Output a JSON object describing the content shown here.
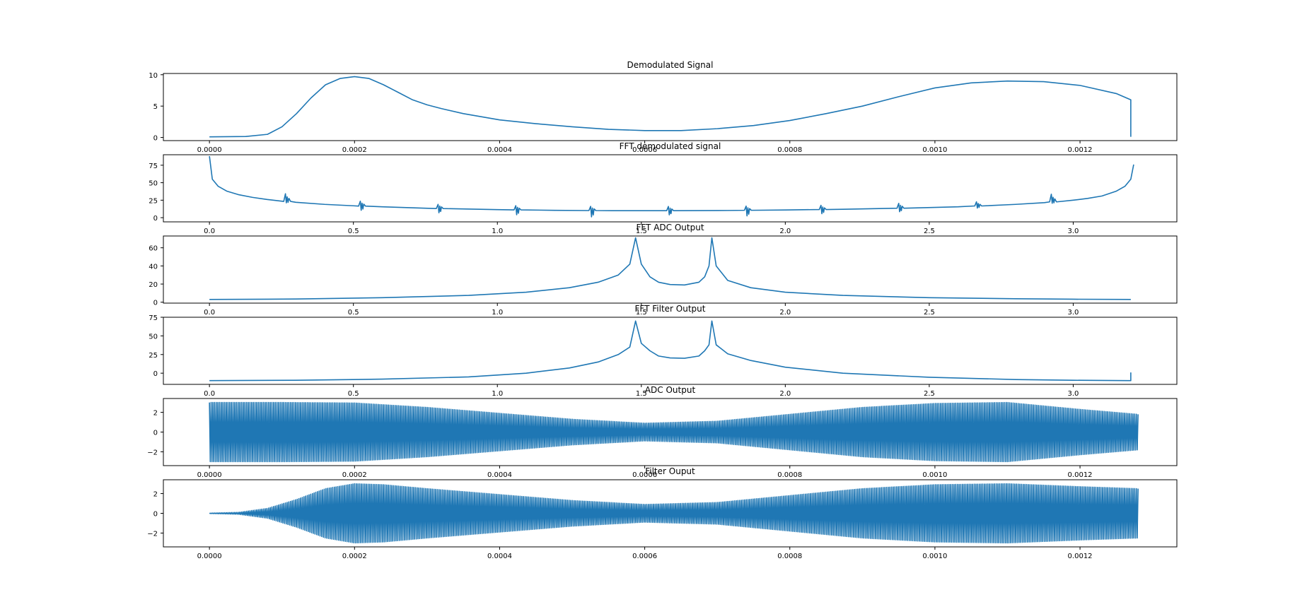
{
  "figure": {
    "background": "#ffffff",
    "line_color": "#1f77b4"
  },
  "chart_data": [
    {
      "type": "line",
      "title": "Demodulated Signal",
      "xlim": [
        -6.35e-05,
        0.0013335
      ],
      "ylim": [
        -0.5,
        10.2
      ],
      "xticks": [
        0,
        0.0002,
        0.0004,
        0.0006,
        0.0008,
        0.001,
        0.0012
      ],
      "xtick_labels": [
        "0.0000",
        "0.0002",
        "0.0004",
        "0.0006",
        "0.0008",
        "0.0010",
        "0.0012"
      ],
      "yticks": [
        0,
        5,
        10
      ],
      "ytick_labels": [
        "0",
        "5",
        "10"
      ],
      "legend": "none",
      "grid": false,
      "x": [
        0,
        5e-05,
        8e-05,
        0.0001,
        0.00012,
        0.00014,
        0.00016,
        0.00018,
        0.0002,
        0.00022,
        0.00024,
        0.00026,
        0.00028,
        0.0003,
        0.00032,
        0.00035,
        0.0004,
        0.00045,
        0.0005,
        0.00055,
        0.0006,
        0.00065,
        0.0007,
        0.00075,
        0.0008,
        0.00085,
        0.0009,
        0.00095,
        0.001,
        0.00105,
        0.0011,
        0.00115,
        0.0012,
        0.00125,
        0.00127,
        0.00127
      ],
      "y": [
        0.1,
        0.15,
        0.5,
        1.7,
        3.8,
        6.3,
        8.4,
        9.4,
        9.7,
        9.4,
        8.4,
        7.2,
        6.0,
        5.2,
        4.6,
        3.8,
        2.8,
        2.2,
        1.7,
        1.3,
        1.1,
        1.1,
        1.4,
        1.9,
        2.7,
        3.8,
        5.0,
        6.5,
        7.9,
        8.7,
        9.0,
        8.9,
        8.3,
        7.0,
        6.0,
        0.1
      ],
      "stairs": true
    },
    {
      "type": "line",
      "title": "FFT demodulated signal",
      "xlim": [
        -0.16,
        3.36
      ],
      "ylim": [
        -6,
        90
      ],
      "xticks": [
        0,
        0.5,
        1.0,
        1.5,
        2.0,
        2.5,
        3.0
      ],
      "xtick_labels": [
        "0.0",
        "0.5",
        "1.0",
        "1.5",
        "2.0",
        "2.5",
        "3.0"
      ],
      "yticks": [
        0,
        25,
        50,
        75
      ],
      "ytick_labels": [
        "0",
        "25",
        "50",
        "75"
      ],
      "legend": "none",
      "grid": false,
      "x": [
        0,
        0.01,
        0.03,
        0.06,
        0.1,
        0.15,
        0.2,
        0.3,
        0.4,
        0.5,
        0.6,
        0.8,
        1.0,
        1.2,
        1.4,
        1.6,
        1.8,
        2.0,
        2.2,
        2.4,
        2.6,
        2.8,
        2.9,
        3.0,
        3.05,
        3.1,
        3.15,
        3.18,
        3.2,
        3.21
      ],
      "y": [
        88,
        55,
        45,
        38,
        33,
        29,
        26,
        22,
        19,
        17,
        15.5,
        13,
        11.5,
        10.5,
        10,
        10,
        10.3,
        11,
        12,
        13.5,
        15.5,
        19,
        21.5,
        25,
        27.5,
        31,
        38,
        45,
        55,
        76
      ],
      "spikes": {
        "at": [
          0.27,
          0.53,
          0.8,
          1.07,
          1.33,
          1.6,
          1.87,
          2.13,
          2.4,
          2.67,
          2.93
        ],
        "amp_up": [
          11,
          7,
          6,
          6,
          6,
          6,
          6,
          6,
          7,
          6,
          11
        ],
        "amp_down": [
          2,
          6,
          6,
          7,
          9,
          6,
          8,
          6,
          5,
          3,
          2
        ]
      }
    },
    {
      "type": "line",
      "title": "FFT ADC Output",
      "xlim": [
        -0.16,
        3.36
      ],
      "ylim": [
        -1,
        73
      ],
      "xticks": [
        0,
        0.5,
        1.0,
        1.5,
        2.0,
        2.5,
        3.0
      ],
      "xtick_labels": [
        "0.0",
        "0.5",
        "1.0",
        "1.5",
        "2.0",
        "2.5",
        "3.0"
      ],
      "yticks": [
        0,
        20,
        40,
        60
      ],
      "ytick_labels": [
        "0",
        "20",
        "40",
        "60"
      ],
      "legend": "none",
      "grid": false,
      "x": [
        0,
        0.3,
        0.6,
        0.9,
        1.1,
        1.25,
        1.35,
        1.42,
        1.46,
        1.48,
        1.5,
        1.53,
        1.56,
        1.6,
        1.65,
        1.7,
        1.72,
        1.735,
        1.745,
        1.76,
        1.8,
        1.88,
        2.0,
        2.2,
        2.5,
        2.8,
        3.0,
        3.2
      ],
      "y": [
        3,
        3.5,
        5,
        7.5,
        11,
        16,
        22,
        30,
        42,
        71,
        42,
        28,
        22,
        19.5,
        19,
        22,
        28,
        40,
        71,
        40,
        24,
        16,
        11,
        7.5,
        5,
        3.8,
        3.3,
        3
      ],
      "stairs": false
    },
    {
      "type": "line",
      "title": "FFT Filter Output",
      "xlim": [
        -0.16,
        3.36
      ],
      "ylim": [
        -15,
        75
      ],
      "xticks": [
        0,
        0.5,
        1.0,
        1.5,
        2.0,
        2.5,
        3.0
      ],
      "xtick_labels": [
        "0.0",
        "0.5",
        "1.0",
        "1.5",
        "2.0",
        "2.5",
        "3.0"
      ],
      "yticks": [
        0,
        25,
        50,
        75
      ],
      "ytick_labels": [
        "0",
        "25",
        "50",
        "75"
      ],
      "legend": "none",
      "grid": false,
      "x": [
        0,
        0.3,
        0.6,
        0.9,
        1.1,
        1.25,
        1.35,
        1.42,
        1.46,
        1.48,
        1.5,
        1.53,
        1.56,
        1.6,
        1.65,
        1.7,
        1.72,
        1.735,
        1.745,
        1.76,
        1.8,
        1.88,
        2.0,
        2.2,
        2.5,
        2.8,
        3.0,
        3.19,
        3.2,
        3.2
      ],
      "y": [
        -10,
        -9.5,
        -8,
        -5,
        0,
        7,
        15,
        25,
        35,
        70,
        40,
        30,
        23,
        20.5,
        20,
        23,
        30,
        38,
        70,
        38,
        26,
        17,
        8,
        0,
        -5.5,
        -8.5,
        -9.5,
        -10,
        -10,
        1
      ],
      "stairs": false
    },
    {
      "type": "area",
      "title": "ADC Output",
      "xlim": [
        -6.35e-05,
        0.0013335
      ],
      "ylim": [
        -3.4,
        3.4
      ],
      "xticks": [
        0,
        0.0002,
        0.0004,
        0.0006,
        0.0008,
        0.001,
        0.0012
      ],
      "xtick_labels": [
        "0.0000",
        "0.0002",
        "0.0004",
        "0.0006",
        "0.0008",
        "0.0010",
        "0.0012"
      ],
      "yticks": [
        -2,
        0,
        2
      ],
      "ytick_labels": [
        "−2",
        "0",
        "2"
      ],
      "legend": "none",
      "grid": false,
      "envelope_x": [
        0,
        0.0001,
        0.0002,
        0.0003,
        0.0004,
        0.0005,
        0.0006,
        0.0007,
        0.0008,
        0.0009,
        0.001,
        0.0011,
        0.0012,
        0.00128
      ],
      "envelope_y": [
        3.0,
        3.0,
        2.95,
        2.5,
        1.9,
        1.3,
        0.9,
        1.1,
        1.8,
        2.5,
        2.9,
        3.0,
        2.3,
        1.8
      ]
    },
    {
      "type": "area",
      "title": "Filter Ouput",
      "xlim": [
        -6.35e-05,
        0.0013335
      ],
      "ylim": [
        -3.4,
        3.4
      ],
      "xticks": [
        0,
        0.0002,
        0.0004,
        0.0006,
        0.0008,
        0.001,
        0.0012
      ],
      "xtick_labels": [
        "0.0000",
        "0.0002",
        "0.0004",
        "0.0006",
        "0.0008",
        "0.0010",
        "0.0012"
      ],
      "yticks": [
        -2,
        0,
        2
      ],
      "ytick_labels": [
        "−2",
        "0",
        "2"
      ],
      "legend": "none",
      "grid": false,
      "envelope_x": [
        0,
        4e-05,
        8e-05,
        0.00012,
        0.00016,
        0.0002,
        0.00024,
        0.0003,
        0.0004,
        0.0005,
        0.0006,
        0.0007,
        0.0008,
        0.0009,
        0.001,
        0.0011,
        0.0012,
        0.00128
      ],
      "envelope_y": [
        0.02,
        0.1,
        0.5,
        1.4,
        2.5,
        3.0,
        2.9,
        2.5,
        1.9,
        1.3,
        0.9,
        1.1,
        1.8,
        2.5,
        2.9,
        3.0,
        2.7,
        2.5
      ]
    }
  ]
}
